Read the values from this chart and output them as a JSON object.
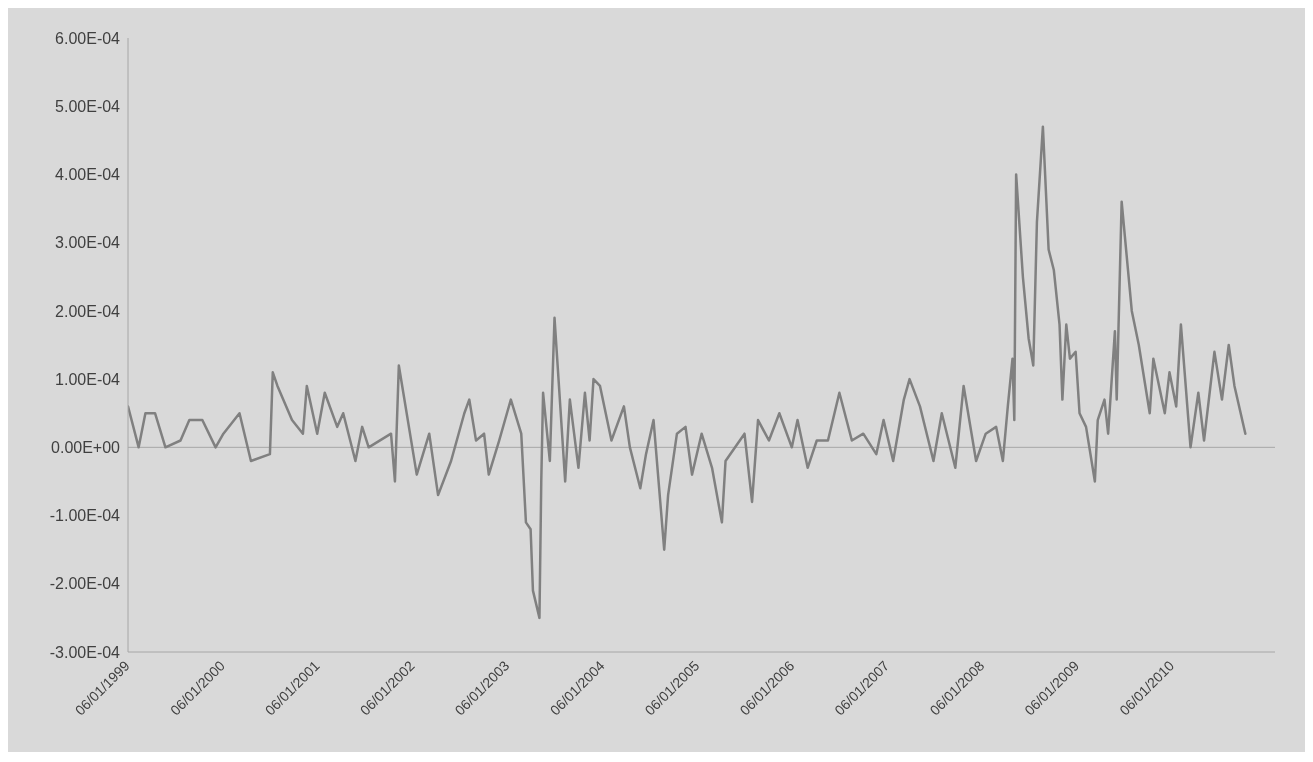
{
  "chart_data": {
    "type": "line",
    "legend": false,
    "grid": false,
    "marker": "none",
    "line_style": "solid",
    "xlim": [
      "1999-06-01",
      "2011-07-01"
    ],
    "xticks": [
      {
        "value": "1999-06-01",
        "label": "06/01/1999"
      },
      {
        "value": "2000-06-01",
        "label": "06/01/2000"
      },
      {
        "value": "2001-06-01",
        "label": "06/01/2001"
      },
      {
        "value": "2002-06-01",
        "label": "06/01/2002"
      },
      {
        "value": "2003-06-01",
        "label": "06/01/2003"
      },
      {
        "value": "2004-06-01",
        "label": "06/01/2004"
      },
      {
        "value": "2005-06-01",
        "label": "06/01/2005"
      },
      {
        "value": "2006-06-01",
        "label": "06/01/2006"
      },
      {
        "value": "2007-06-01",
        "label": "06/01/2007"
      },
      {
        "value": "2008-06-01",
        "label": "06/01/2008"
      },
      {
        "value": "2009-06-01",
        "label": "06/01/2009"
      },
      {
        "value": "2010-06-01",
        "label": "06/01/2010"
      }
    ],
    "ylim": [
      -0.0003,
      0.0006
    ],
    "yticks": [
      {
        "value": -0.0003,
        "label": "-3.00E-04"
      },
      {
        "value": -0.0002,
        "label": "-2.00E-04"
      },
      {
        "value": -0.0001,
        "label": "-1.00E-04"
      },
      {
        "value": 0,
        "label": "0.00E+00"
      },
      {
        "value": 0.0001,
        "label": "1.00E-04"
      },
      {
        "value": 0.0002,
        "label": "2.00E-04"
      },
      {
        "value": 0.0003,
        "label": "3.00E-04"
      },
      {
        "value": 0.0004,
        "label": "4.00E-04"
      },
      {
        "value": 0.0005,
        "label": "5.00E-04"
      },
      {
        "value": 0.0006,
        "label": "6.00E-04"
      }
    ],
    "ref_lines": [
      {
        "axis": "y",
        "value": 0,
        "color": "#a6a6a6"
      }
    ],
    "series": [
      {
        "color": "#808080",
        "x": [
          "1999-06-01",
          "1999-07-12",
          "1999-08-07",
          "1999-09-13",
          "1999-10-23",
          "1999-12-20",
          "2000-01-23",
          "2000-03-13",
          "2000-05-03",
          "2000-06-02",
          "2000-08-03",
          "2000-09-16",
          "2000-11-28",
          "2000-12-09",
          "2000-12-27",
          "2001-02-21",
          "2001-04-04",
          "2001-04-19",
          "2001-05-29",
          "2001-06-27",
          "2001-08-14",
          "2001-09-06",
          "2001-10-23",
          "2001-11-18",
          "2001-12-13",
          "2002-03-09",
          "2002-03-24",
          "2002-04-08",
          "2002-06-16",
          "2002-08-03",
          "2002-09-06",
          "2002-10-26",
          "2002-12-16",
          "2003-01-04",
          "2003-01-30",
          "2003-03-02",
          "2003-03-20",
          "2003-04-29",
          "2003-06-13",
          "2003-07-23",
          "2003-08-10",
          "2003-08-28",
          "2003-09-06",
          "2003-10-01",
          "2003-10-08",
          "2003-10-15",
          "2003-11-10",
          "2003-11-28",
          "2004-01-08",
          "2004-01-26",
          "2004-02-28",
          "2004-03-24",
          "2004-04-11",
          "2004-04-26",
          "2004-05-21",
          "2004-07-04",
          "2004-08-21",
          "2004-09-13",
          "2004-10-23",
          "2004-11-14",
          "2004-12-13",
          "2005-01-23",
          "2005-02-07",
          "2005-03-13",
          "2005-04-15",
          "2005-05-10",
          "2005-06-16",
          "2005-07-26",
          "2005-09-02",
          "2005-09-16",
          "2005-11-28",
          "2005-12-27",
          "2006-01-19",
          "2006-03-02",
          "2006-04-11",
          "2006-05-29",
          "2006-06-20",
          "2006-07-29",
          "2006-09-02",
          "2006-10-15",
          "2006-11-28",
          "2007-01-15",
          "2007-02-28",
          "2007-04-19",
          "2007-05-17",
          "2007-06-23",
          "2007-08-03",
          "2007-08-25",
          "2007-10-04",
          "2007-11-25",
          "2007-12-27",
          "2008-02-17",
          "2008-03-20",
          "2008-05-07",
          "2008-06-13",
          "2008-07-23",
          "2008-08-18",
          "2008-09-06",
          "2008-09-24",
          "2008-10-01",
          "2008-10-08",
          "2008-11-03",
          "2008-11-25",
          "2008-12-13",
          "2008-12-27",
          "2009-01-19",
          "2009-02-10",
          "2009-03-02",
          "2009-03-24",
          "2009-04-04",
          "2009-04-19",
          "2009-05-03",
          "2009-05-25",
          "2009-06-09",
          "2009-07-04",
          "2009-08-07",
          "2009-08-18",
          "2009-09-13",
          "2009-09-27",
          "2009-10-23",
          "2009-10-30",
          "2009-11-18",
          "2009-12-27",
          "2010-01-23",
          "2010-03-06",
          "2010-03-20",
          "2010-05-03",
          "2010-05-21",
          "2010-06-16",
          "2010-07-04",
          "2010-08-10",
          "2010-09-09",
          "2010-10-01",
          "2010-11-10",
          "2010-12-09",
          "2011-01-04",
          "2011-01-26",
          "2011-03-09"
        ],
        "values": [
          6e-05,
          0,
          5e-05,
          5e-05,
          0,
          1e-05,
          4e-05,
          4e-05,
          0,
          2e-05,
          5e-05,
          -2e-05,
          -1e-05,
          0.00011,
          9e-05,
          4e-05,
          2e-05,
          9e-05,
          2e-05,
          8e-05,
          3e-05,
          5e-05,
          -2e-05,
          3e-05,
          0,
          2e-05,
          -5e-05,
          0.00012,
          -4e-05,
          2e-05,
          -7e-05,
          -2e-05,
          5e-05,
          7e-05,
          1e-05,
          2e-05,
          -4e-05,
          1e-05,
          7e-05,
          2e-05,
          -0.00011,
          -0.00012,
          -0.00021,
          -0.00025,
          -5e-05,
          8e-05,
          -2e-05,
          0.00019,
          -5e-05,
          7e-05,
          -3e-05,
          8e-05,
          1e-05,
          0.0001,
          9e-05,
          1e-05,
          6e-05,
          0,
          -6e-05,
          -1e-05,
          4e-05,
          -0.00015,
          -7e-05,
          2e-05,
          3e-05,
          -4e-05,
          2e-05,
          -3e-05,
          -0.00011,
          -2e-05,
          2e-05,
          -8e-05,
          4e-05,
          1e-05,
          5e-05,
          0,
          4e-05,
          -3e-05,
          1e-05,
          1e-05,
          8e-05,
          1e-05,
          2e-05,
          -1e-05,
          4e-05,
          -2e-05,
          7e-05,
          0.0001,
          6e-05,
          -2e-05,
          5e-05,
          -3e-05,
          9e-05,
          -2e-05,
          2e-05,
          3e-05,
          -2e-05,
          6e-05,
          0.00013,
          4e-05,
          0.0004,
          0.00025,
          0.00016,
          0.00012,
          0.00033,
          0.00047,
          0.00029,
          0.00026,
          0.00018,
          7e-05,
          0.00018,
          0.00013,
          0.00014,
          5e-05,
          3e-05,
          -5e-05,
          4e-05,
          7e-05,
          2e-05,
          0.00017,
          7e-05,
          0.00036,
          0.0002,
          0.00015,
          5e-05,
          0.00013,
          5e-05,
          0.00011,
          6e-05,
          0.00018,
          0,
          8e-05,
          1e-05,
          0.00014,
          7e-05,
          0.00015,
          9e-05,
          2e-05
        ]
      }
    ]
  }
}
